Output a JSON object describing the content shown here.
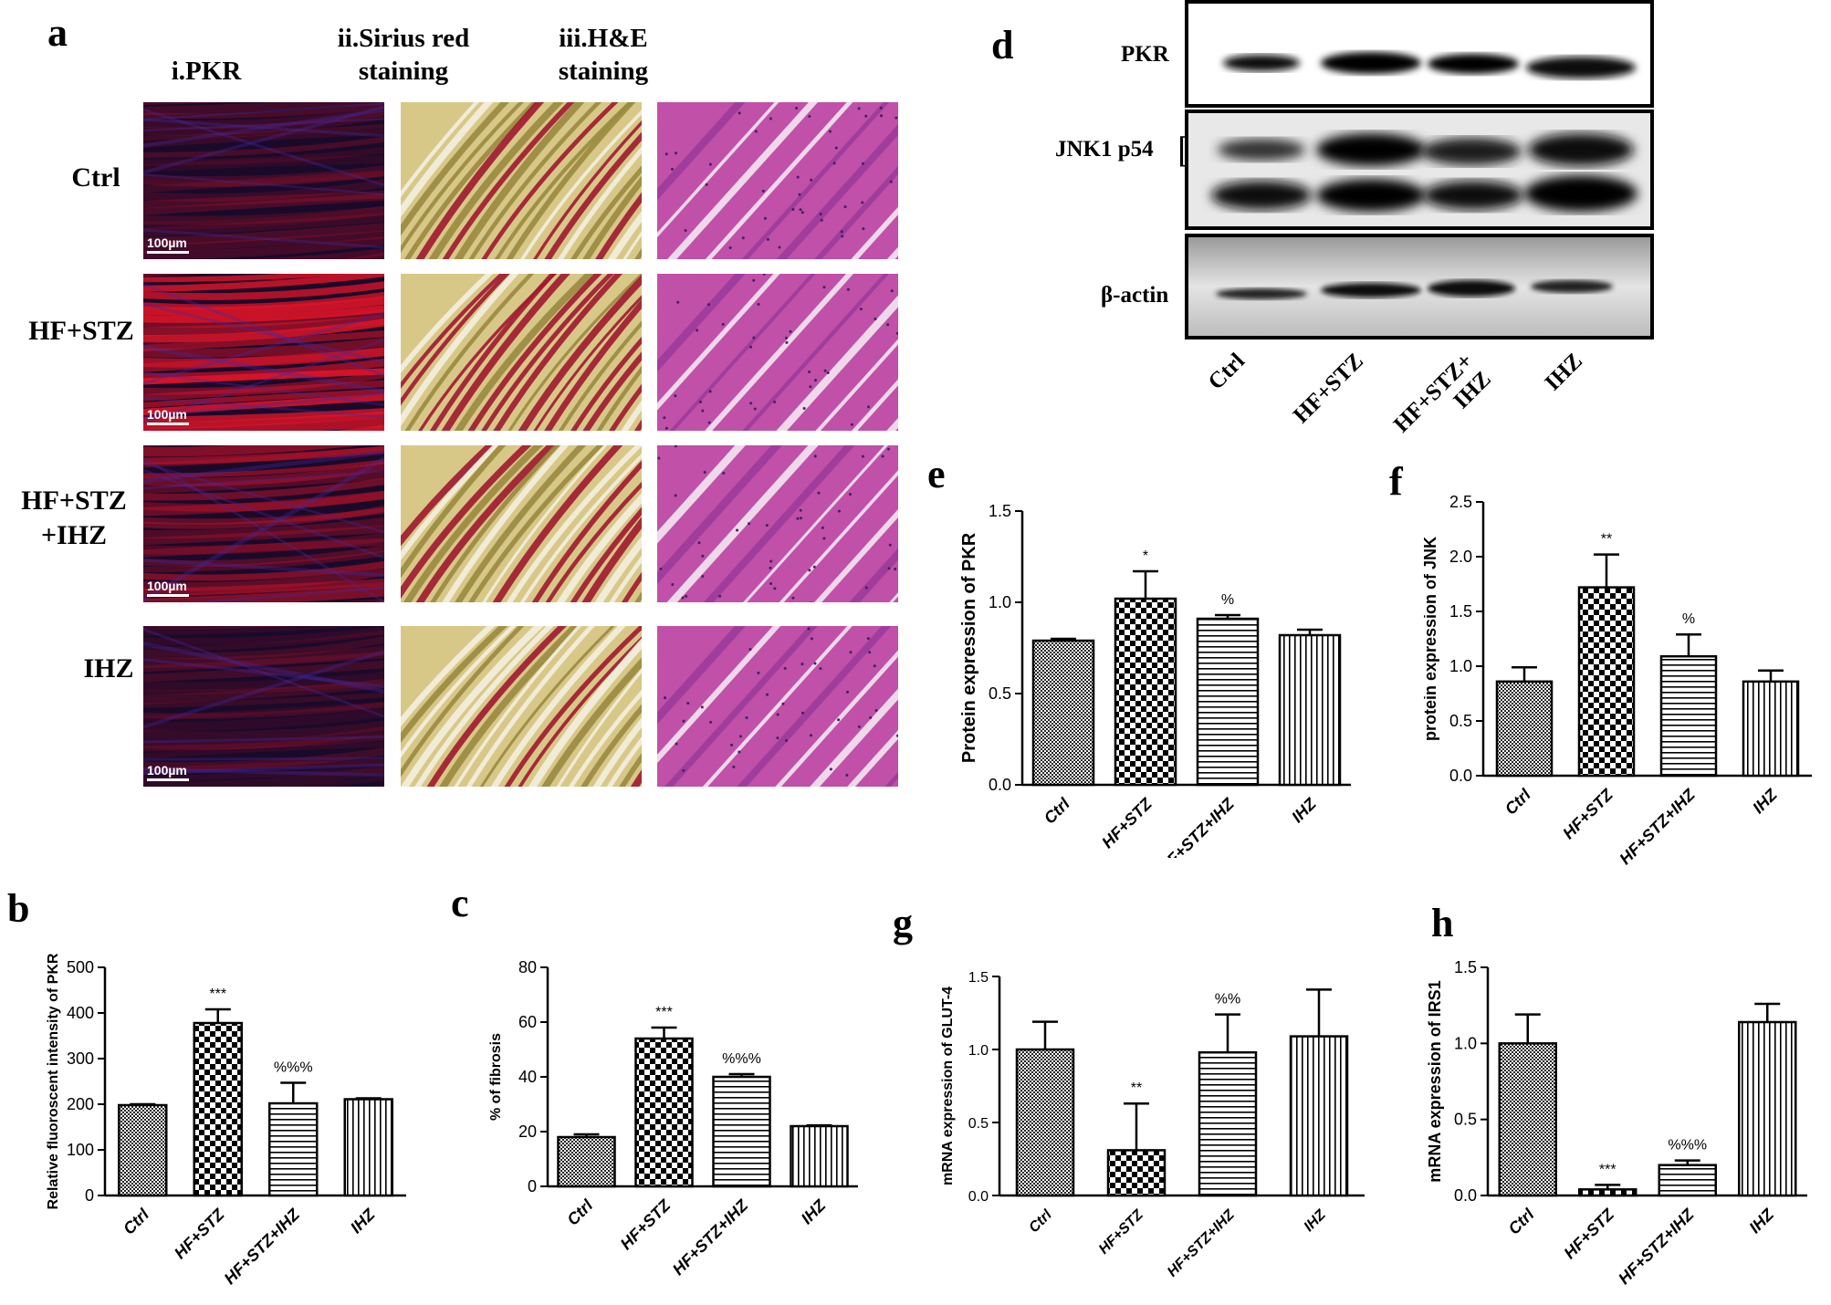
{
  "panel_a": {
    "letter": "a",
    "columns": [
      "i.PKR",
      "ii.Sirius red\nstaining",
      "iii.H&E\nstaining"
    ],
    "rows": [
      "Ctrl",
      "HF+STZ",
      "HF+STZ\n+IHZ",
      "IHZ"
    ],
    "scale_label": "100µm"
  },
  "panel_d": {
    "letter": "d",
    "blots": [
      "PKR",
      "JNK1 p54",
      "β-actin"
    ],
    "lanes": [
      "Ctrl",
      "HF+STZ",
      "HF+STZ+\nIHZ",
      "IHZ"
    ]
  },
  "colors": {
    "bar_edge": "#000000",
    "if_red": "#d01020",
    "sirius": "#b09a40",
    "he": "#b040a0"
  },
  "chart_data": [
    {
      "id": "b",
      "letter": "b",
      "type": "bar",
      "categories": [
        "Ctrl",
        "HF+STZ",
        "HF+STZ+IHZ",
        "IHZ"
      ],
      "values": [
        198,
        378,
        202,
        211
      ],
      "errors": [
        2,
        30,
        45,
        2
      ],
      "annotations": [
        "",
        "***",
        "%%%",
        ""
      ],
      "patterns": [
        "fine",
        "check",
        "hstripe",
        "vstripe"
      ],
      "ylabel": "Relative fluoroscent intensity of PKR",
      "ylim": [
        0,
        500
      ],
      "yticks": [
        0,
        100,
        200,
        300,
        400,
        500
      ],
      "ytick_labels": [
        "0",
        "100",
        "200",
        "300",
        "400",
        "500"
      ]
    },
    {
      "id": "c",
      "letter": "c",
      "type": "bar",
      "categories": [
        "Ctrl",
        "HF+STZ",
        "HF+STZ+IHZ",
        "IHZ"
      ],
      "values": [
        18,
        54,
        40,
        22
      ],
      "errors": [
        1,
        4,
        1,
        0.3
      ],
      "annotations": [
        "",
        "***",
        "%%%",
        ""
      ],
      "patterns": [
        "fine",
        "check",
        "hstripe",
        "vstripe"
      ],
      "ylabel": "% of fibrosis",
      "ylim": [
        0,
        80
      ],
      "yticks": [
        0,
        20,
        40,
        60,
        80
      ],
      "ytick_labels": [
        "0",
        "20",
        "40",
        "60",
        "80"
      ]
    },
    {
      "id": "e",
      "letter": "e",
      "type": "bar",
      "categories": [
        "Ctrl",
        "HF+STZ",
        "HF+STZ+IHZ",
        "IHZ"
      ],
      "values": [
        0.79,
        1.02,
        0.91,
        0.82
      ],
      "errors": [
        0.01,
        0.15,
        0.02,
        0.03
      ],
      "annotations": [
        "",
        "*",
        "%",
        ""
      ],
      "patterns": [
        "fine",
        "check",
        "hstripe",
        "vstripe"
      ],
      "ylabel": "Protein expression of PKR",
      "ylim": [
        0,
        1.5
      ],
      "yticks": [
        0,
        0.5,
        1.0,
        1.5
      ],
      "ytick_labels": [
        "0.0",
        "0.5",
        "1.0",
        "1.5"
      ]
    },
    {
      "id": "f",
      "letter": "f",
      "type": "bar",
      "categories": [
        "Ctrl",
        "HF+STZ",
        "HF+STZ+IHZ",
        "IHZ"
      ],
      "values": [
        0.86,
        1.72,
        1.09,
        0.86
      ],
      "errors": [
        0.13,
        0.3,
        0.2,
        0.1
      ],
      "annotations": [
        "",
        "**",
        "%",
        ""
      ],
      "patterns": [
        "fine",
        "check",
        "hstripe",
        "vstripe"
      ],
      "ylabel": "protein expression of JNK",
      "ylim": [
        0,
        2.5
      ],
      "yticks": [
        0,
        0.5,
        1.0,
        1.5,
        2.0,
        2.5
      ],
      "ytick_labels": [
        "0.0",
        "0.5",
        "1.0",
        "1.5",
        "2.0",
        "2.5"
      ]
    },
    {
      "id": "g",
      "letter": "g",
      "type": "bar",
      "categories": [
        "Ctrl",
        "HF+STZ",
        "HF+STZ+IHZ",
        "IHZ"
      ],
      "values": [
        1.0,
        0.31,
        0.98,
        1.09
      ],
      "errors": [
        0.19,
        0.32,
        0.26,
        0.32
      ],
      "annotations": [
        "",
        "**",
        "%%",
        ""
      ],
      "patterns": [
        "fine",
        "check",
        "hstripe",
        "vstripe"
      ],
      "ylabel": "mRNA expression of GLUT-4",
      "ylim": [
        0,
        1.5
      ],
      "yticks": [
        0,
        0.5,
        1.0,
        1.5
      ],
      "ytick_labels": [
        "0.0",
        "0.5",
        "1.0",
        "1.5"
      ]
    },
    {
      "id": "h",
      "letter": "h",
      "type": "bar",
      "categories": [
        "Ctrl",
        "HF+STZ",
        "HF+STZ+IHZ",
        "IHZ"
      ],
      "values": [
        1.0,
        0.04,
        0.2,
        1.14
      ],
      "errors": [
        0.19,
        0.03,
        0.03,
        0.12
      ],
      "annotations": [
        "",
        "***",
        "%%%",
        ""
      ],
      "patterns": [
        "fine",
        "check",
        "hstripe",
        "vstripe"
      ],
      "ylabel": "mRNA expression of IRS1",
      "ylim": [
        0,
        1.5
      ],
      "yticks": [
        0,
        0.5,
        1.0,
        1.5
      ],
      "ytick_labels": [
        "0.0",
        "0.5",
        "1.0",
        "1.5"
      ]
    }
  ]
}
